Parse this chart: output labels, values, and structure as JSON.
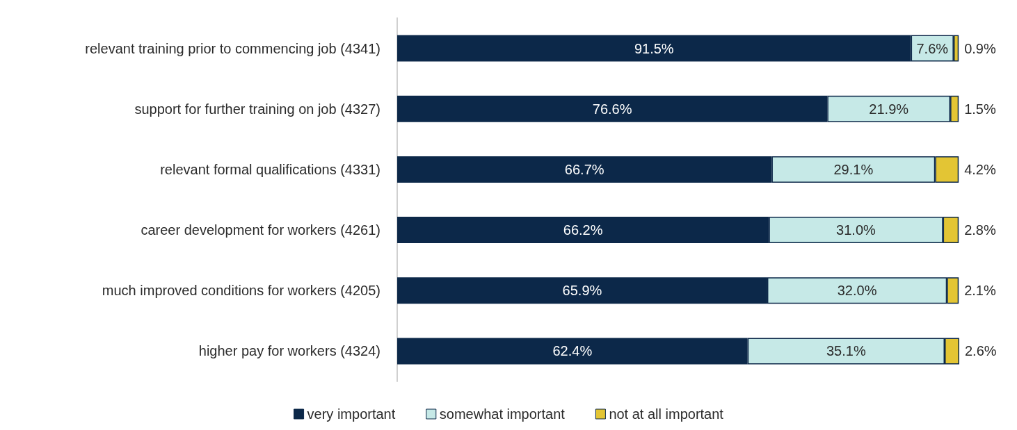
{
  "chart_data": {
    "type": "bar",
    "orientation": "horizontal",
    "stacked": true,
    "legend": "bottom",
    "categories": [
      "relevant training prior to commencing job (4341)",
      "support for further training on job (4327)",
      "relevant formal qualifications (4331)",
      "career development for workers (4261)",
      "much improved conditions for workers (4205)",
      "higher pay for workers (4324)"
    ],
    "series": [
      {
        "name": "very important",
        "color": "#0c2849",
        "values": [
          91.5,
          76.6,
          66.7,
          66.2,
          65.9,
          62.4
        ],
        "value_labels": [
          "91.5%",
          "76.6%",
          "66.7%",
          "66.2%",
          "65.9%",
          "62.4%"
        ]
      },
      {
        "name": "somewhat important",
        "color": "#c6e9e7",
        "values": [
          7.6,
          21.9,
          29.1,
          31.0,
          32.0,
          35.1
        ],
        "value_labels": [
          "7.6%",
          "21.9%",
          "29.1%",
          "31.0%",
          "32.0%",
          "35.1%"
        ]
      },
      {
        "name": "not at all important",
        "color": "#e3c534",
        "values": [
          0.9,
          1.5,
          4.2,
          2.8,
          2.1,
          2.6
        ],
        "value_labels": [
          "0.9%",
          "1.5%",
          "4.2%",
          "2.8%",
          "2.1%",
          "2.6%"
        ]
      }
    ]
  }
}
